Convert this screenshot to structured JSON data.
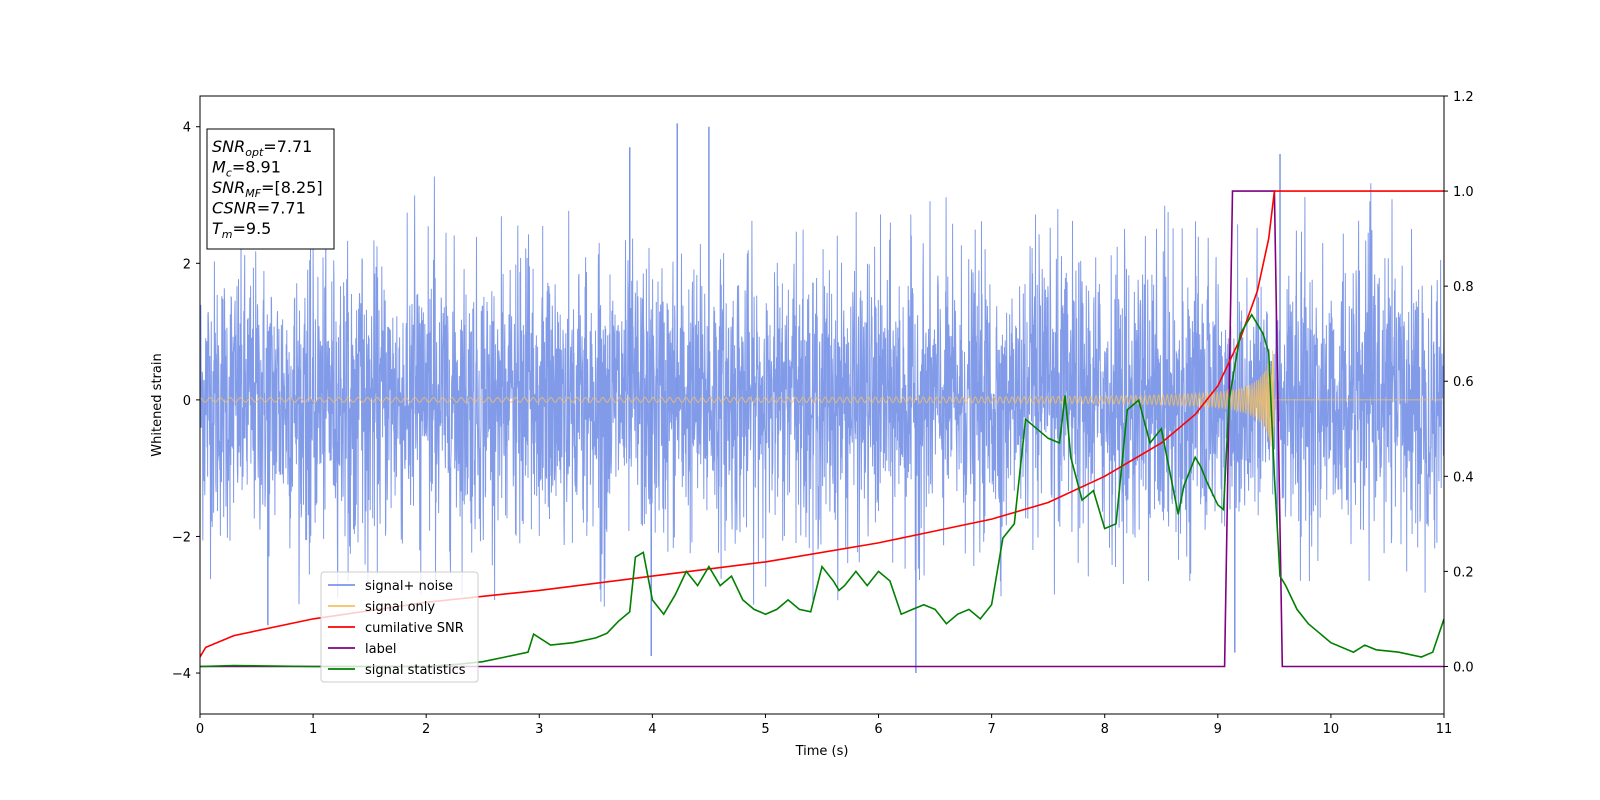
{
  "chart_data": {
    "type": "line",
    "title": "",
    "xlabel": "Time (s)",
    "ylabel": "Whitened strain",
    "xlim": [
      0,
      11
    ],
    "ylim": [
      -4.6,
      4.45
    ],
    "y2lim": [
      -0.1,
      1.2
    ],
    "xticks": [
      "0",
      "1",
      "2",
      "3",
      "4",
      "5",
      "6",
      "7",
      "8",
      "9",
      "10",
      "11"
    ],
    "yticks": [
      "−4",
      "−2",
      "0",
      "2",
      "4"
    ],
    "y2ticks": [
      "0.0",
      "0.2",
      "0.4",
      "0.6",
      "0.8",
      "1.0",
      "1.2"
    ],
    "grid": false,
    "legend_position": "lower-left",
    "annotation": {
      "lines": [
        {
          "base": "SNR",
          "sub": "opt",
          "rest": "=7.71"
        },
        {
          "base": "M",
          "sub": "c",
          "rest": "=8.91"
        },
        {
          "base": "SNR",
          "sub": "MF",
          "rest": "=[8.25]"
        },
        {
          "base": "CSNR",
          "sub": "",
          "rest": "=7.71"
        },
        {
          "base": "T",
          "sub": "m",
          "rest": "=9.5"
        }
      ]
    },
    "series": [
      {
        "name": "signal+ noise",
        "color": "#7b96e8",
        "axis": "left",
        "kind": "noise",
        "envelope_typical": 2.6,
        "peaks": [
          [
            3.8,
            3.7
          ],
          [
            4.22,
            4.05
          ],
          [
            4.5,
            4.0
          ],
          [
            9.55,
            3.6
          ],
          [
            6.33,
            -4.0
          ],
          [
            9.15,
            -3.7
          ],
          [
            3.99,
            -3.75
          ],
          [
            0.6,
            -3.3
          ]
        ]
      },
      {
        "name": "signal only",
        "color": "#f5c060",
        "axis": "left",
        "kind": "chirp",
        "amplitude_start": 0.03,
        "amplitude_end": 1.0,
        "end_time": 9.5
      },
      {
        "name": "cumilative SNR",
        "color": "#ff0000",
        "axis": "right",
        "x": [
          0.0,
          0.05,
          0.3,
          1.0,
          2.0,
          3.0,
          4.0,
          5.0,
          6.0,
          6.5,
          7.0,
          7.5,
          8.0,
          8.5,
          8.8,
          9.0,
          9.2,
          9.35,
          9.45,
          9.5,
          11.0
        ],
        "y": [
          0.02,
          0.04,
          0.065,
          0.1,
          0.135,
          0.16,
          0.19,
          0.22,
          0.26,
          0.285,
          0.31,
          0.345,
          0.4,
          0.47,
          0.53,
          0.59,
          0.69,
          0.79,
          0.9,
          1.0,
          1.0
        ]
      },
      {
        "name": "label",
        "color": "#800080",
        "axis": "right",
        "x": [
          0.0,
          9.06,
          9.13,
          9.5,
          9.57,
          11.0
        ],
        "y": [
          0.0,
          0.0,
          1.0,
          1.0,
          0.0,
          0.0
        ]
      },
      {
        "name": "signal statistics",
        "color": "#008000",
        "axis": "right",
        "x": [
          0.0,
          0.3,
          1.0,
          1.5,
          2.0,
          2.3,
          2.5,
          2.7,
          2.9,
          2.95,
          3.1,
          3.3,
          3.5,
          3.6,
          3.7,
          3.8,
          3.85,
          3.92,
          4.0,
          4.1,
          4.2,
          4.3,
          4.4,
          4.5,
          4.6,
          4.7,
          4.8,
          4.9,
          5.0,
          5.1,
          5.2,
          5.3,
          5.4,
          5.5,
          5.6,
          5.65,
          5.7,
          5.8,
          5.9,
          6.0,
          6.1,
          6.2,
          6.3,
          6.4,
          6.5,
          6.6,
          6.7,
          6.8,
          6.9,
          7.0,
          7.1,
          7.2,
          7.3,
          7.4,
          7.5,
          7.6,
          7.65,
          7.7,
          7.8,
          7.9,
          8.0,
          8.1,
          8.2,
          8.3,
          8.4,
          8.5,
          8.6,
          8.65,
          8.7,
          8.8,
          8.85,
          8.9,
          9.0,
          9.05,
          9.1,
          9.2,
          9.3,
          9.4,
          9.45,
          9.5,
          9.55,
          9.6,
          9.7,
          9.8,
          9.9,
          10.0,
          10.2,
          10.3,
          10.4,
          10.6,
          10.8,
          10.9,
          11.0
        ],
        "y": [
          0.0,
          0.002,
          0.0,
          0.0,
          0.0,
          0.005,
          0.01,
          0.02,
          0.03,
          0.068,
          0.045,
          0.05,
          0.06,
          0.07,
          0.095,
          0.115,
          0.23,
          0.24,
          0.14,
          0.11,
          0.15,
          0.2,
          0.17,
          0.21,
          0.17,
          0.19,
          0.14,
          0.12,
          0.11,
          0.12,
          0.14,
          0.12,
          0.115,
          0.21,
          0.18,
          0.16,
          0.17,
          0.2,
          0.17,
          0.2,
          0.18,
          0.11,
          0.12,
          0.13,
          0.12,
          0.09,
          0.11,
          0.12,
          0.1,
          0.13,
          0.27,
          0.3,
          0.52,
          0.5,
          0.48,
          0.47,
          0.57,
          0.44,
          0.35,
          0.37,
          0.29,
          0.3,
          0.54,
          0.56,
          0.47,
          0.5,
          0.38,
          0.32,
          0.38,
          0.44,
          0.42,
          0.39,
          0.34,
          0.33,
          0.56,
          0.7,
          0.74,
          0.7,
          0.66,
          0.4,
          0.19,
          0.17,
          0.12,
          0.09,
          0.07,
          0.05,
          0.03,
          0.045,
          0.035,
          0.03,
          0.02,
          0.03,
          0.1
        ]
      }
    ]
  }
}
